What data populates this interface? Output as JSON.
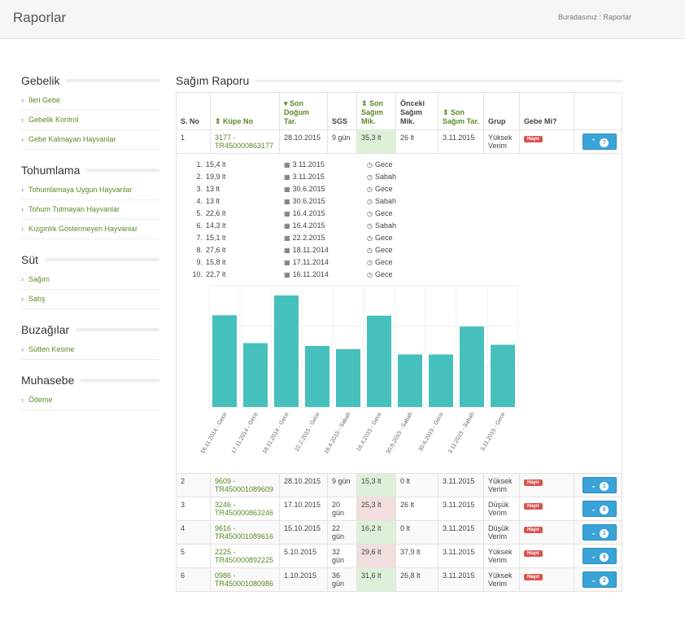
{
  "header": {
    "title": "Raporlar",
    "breadcrumb_label": "Buradasınız :",
    "breadcrumb_page": "Raporlar"
  },
  "sidebar": [
    {
      "title": "Gebelik",
      "items": [
        "İleri Gebe",
        "Gebelik Kontrol",
        "Gebe Kalmayan Hayvanlar"
      ]
    },
    {
      "title": "Tohumlama",
      "items": [
        "Tohumlamaya Uygun Hayvanlar",
        "Tohum Tutmayan Hayvanlar",
        "Kızgınlık Göstermeyen Hayvanlar"
      ]
    },
    {
      "title": "Süt",
      "items": [
        "Sağım",
        "Satış"
      ]
    },
    {
      "title": "Buzağılar",
      "items": [
        "Sütten Kesme"
      ]
    },
    {
      "title": "Muhasebe",
      "items": [
        "Ödeme"
      ]
    }
  ],
  "report": {
    "title": "Sağım Raporu",
    "columns": [
      "S. No",
      "Küpe No",
      "Son Doğum Tar.",
      "SGS",
      "Son Sağım Mik.",
      "Önceki Sağım Mik.",
      "Son Sağım Tar.",
      "Grup",
      "Gebe Mi?"
    ],
    "rows": [
      {
        "no": "1",
        "kupe": "3177 - TR450000863177",
        "dogum": "28.10.2015",
        "sgs": "9 gün",
        "son": "35,3 lt",
        "onceki": "26 lt",
        "tar": "3.11.2015",
        "grup": "Yüksek Verim",
        "gebe": "Hayır",
        "count": "7",
        "color": "green"
      },
      {
        "no": "2",
        "kupe": "9609 - TR450001089609",
        "dogum": "28.10.2015",
        "sgs": "9 gün",
        "son": "15,3 lt",
        "onceki": "0 lt",
        "tar": "3.11.2015",
        "grup": "Yüksek Verim",
        "gebe": "Hayır",
        "count": "1",
        "color": "green"
      },
      {
        "no": "3",
        "kupe": "3246 - TR450000863246",
        "dogum": "17.10.2015",
        "sgs": "20 gün",
        "son": "25,3 lt",
        "onceki": "26 lt",
        "tar": "3.11.2015",
        "grup": "Düşük Verim",
        "gebe": "Hayır",
        "count": "6",
        "color": "red"
      },
      {
        "no": "4",
        "kupe": "9616 - TR450001089616",
        "dogum": "15.10.2015",
        "sgs": "22 gün",
        "son": "16,2 lt",
        "onceki": "0 lt",
        "tar": "3.11.2015",
        "grup": "Düşük Verim",
        "gebe": "Hayır",
        "count": "1",
        "color": "green"
      },
      {
        "no": "5",
        "kupe": "2225 - TR450000892225",
        "dogum": "5.10.2015",
        "sgs": "32 gün",
        "son": "29,6 lt",
        "onceki": "37,9 lt",
        "tar": "3.11.2015",
        "grup": "Yüksek Verim",
        "gebe": "Hayır",
        "count": "9",
        "color": "red"
      },
      {
        "no": "6",
        "kupe": "0986 - TR450001080986",
        "dogum": "1.10.2015",
        "sgs": "36 gün",
        "son": "31,6 lt",
        "onceki": "26,8 lt",
        "tar": "3.11.2015",
        "grup": "Yüksek Verim",
        "gebe": "Hayır",
        "count": "2",
        "color": "green"
      }
    ],
    "milkings": [
      {
        "amount": "15,4 lt",
        "date": "3.11.2015",
        "time": "Gece"
      },
      {
        "amount": "19,9 lt",
        "date": "3.11.2015",
        "time": "Sabah"
      },
      {
        "amount": "13 lt",
        "date": "30.6.2015",
        "time": "Gece"
      },
      {
        "amount": "13 lt",
        "date": "30.6.2015",
        "time": "Sabah"
      },
      {
        "amount": "22,6 lt",
        "date": "16.4.2015",
        "time": "Gece"
      },
      {
        "amount": "14,3 lt",
        "date": "16.4.2015",
        "time": "Sabah"
      },
      {
        "amount": "15,1 lt",
        "date": "22.2.2015",
        "time": "Gece"
      },
      {
        "amount": "27,6 lt",
        "date": "18.11.2014",
        "time": "Gece"
      },
      {
        "amount": "15,8 lt",
        "date": "17.11.2014",
        "time": "Gece"
      },
      {
        "amount": "22,7 lt",
        "date": "16.11.2014",
        "time": "Gece"
      }
    ]
  },
  "chart_data": {
    "type": "bar",
    "categories": [
      "16.11.2014 - Gece",
      "17.11.2014 - Gece",
      "18.11.2014 - Gece",
      "22.2.2015 - Gece",
      "16.4.2015 - Sabah",
      "16.4.2015 - Gece",
      "30.6.2015 - Sabah",
      "30.6.2015 - Gece",
      "3.11.2015 - Sabah",
      "3.11.2015 - Gece"
    ],
    "values": [
      22.7,
      15.8,
      27.6,
      15.1,
      14.3,
      22.6,
      13,
      13,
      19.9,
      15.4
    ],
    "ylim": [
      0,
      30
    ],
    "grid": true,
    "color": "#46c0bc"
  }
}
